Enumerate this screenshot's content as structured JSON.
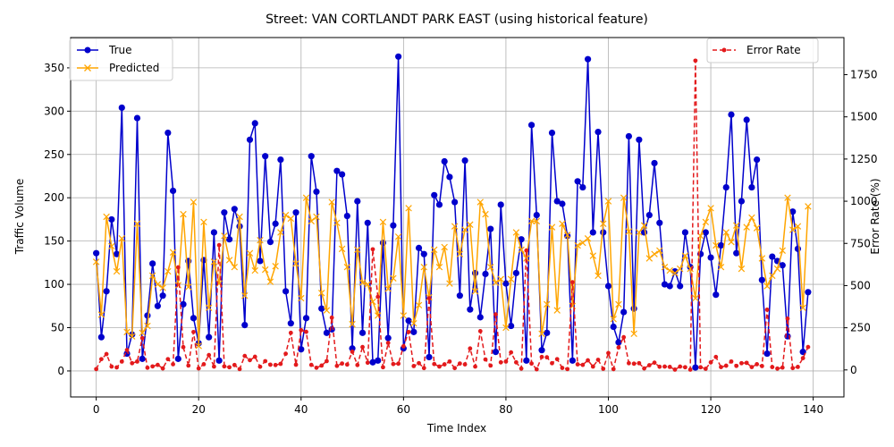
{
  "chart_data": {
    "type": "line",
    "title": "Street: VAN CORTLANDT PARK EAST (using historical feature)",
    "xlabel": "Time Index",
    "ylabel_left": "Traffic Volume",
    "ylabel_right": "Error Rate (%)",
    "xlim": [
      -5,
      146
    ],
    "ylim_left": [
      -30,
      385
    ],
    "ylim_right": [
      -160,
      1970
    ],
    "x_ticks": [
      0,
      20,
      40,
      60,
      80,
      100,
      120,
      140
    ],
    "y_ticks_left": [
      0,
      50,
      100,
      150,
      200,
      250,
      300,
      350
    ],
    "y_ticks_right": [
      0,
      250,
      500,
      750,
      1000,
      1250,
      1500,
      1750
    ],
    "grid": true,
    "legend_left": "top-left",
    "legend_right": "top-right",
    "colors": {
      "true": "#0000cc",
      "predicted": "#ffa500",
      "error": "#e31a1c"
    },
    "series": [
      {
        "name": "True",
        "axis": "left",
        "marker": "circle",
        "values": [
          136,
          39,
          92,
          175,
          135,
          304,
          20,
          42,
          292,
          14,
          64,
          124,
          75,
          87,
          275,
          208,
          14,
          77,
          127,
          61,
          32,
          128,
          39,
          160,
          12,
          183,
          152,
          187,
          167,
          53,
          267,
          286,
          127,
          248,
          149,
          170,
          244,
          92,
          55,
          183,
          25,
          61,
          248,
          207,
          72,
          44,
          48,
          231,
          227,
          179,
          26,
          196,
          44,
          171,
          10,
          12,
          148,
          38,
          168,
          363,
          26,
          58,
          45,
          142,
          135,
          16,
          203,
          192,
          242,
          224,
          195,
          87,
          243,
          71,
          113,
          62,
          112,
          164,
          22,
          192,
          101,
          52,
          113,
          152,
          12,
          284,
          180,
          24,
          44,
          275,
          196,
          193,
          156,
          12,
          219,
          212,
          360,
          160,
          276,
          160,
          98,
          51,
          33,
          68,
          271,
          72,
          267,
          160,
          180,
          240,
          171,
          100,
          98,
          115,
          98,
          160,
          120,
          4,
          135,
          160,
          131,
          88,
          145,
          212,
          296,
          136,
          196,
          290,
          212,
          244,
          105,
          20,
          132,
          127,
          122,
          40,
          184,
          141,
          22,
          91
        ]
      },
      {
        "name": "Predicted",
        "axis": "left",
        "marker": "x",
        "values": [
          126,
          65,
          178,
          144,
          115,
          153,
          45,
          40,
          170,
          44,
          52,
          110,
          100,
          96,
          115,
          137,
          99,
          181,
          97,
          195,
          29,
          172,
          73,
          126,
          101,
          156,
          128,
          120,
          178,
          87,
          136,
          116,
          151,
          117,
          103,
          121,
          160,
          180,
          176,
          124,
          84,
          200,
          173,
          178,
          90,
          70,
          195,
          171,
          141,
          120,
          54,
          140,
          102,
          100,
          80,
          64,
          172,
          95,
          107,
          155,
          64,
          188,
          55,
          76,
          120,
          85,
          140,
          120,
          143,
          101,
          167,
          135,
          163,
          169,
          92,
          195,
          181,
          120,
          102,
          106,
          50,
          106,
          160,
          140,
          130,
          173,
          173,
          43,
          77,
          166,
          70,
          170,
          157,
          75,
          145,
          148,
          153,
          133,
          110,
          170,
          196,
          60,
          77,
          200,
          161,
          43,
          160,
          168,
          130,
          135,
          139,
          120,
          116,
          113,
          118,
          133,
          118,
          84,
          156,
          172,
          188,
          145,
          120,
          160,
          149,
          168,
          118,
          166,
          177,
          165,
          130,
          98,
          110,
          118,
          139,
          200,
          163,
          167,
          73,
          190
        ]
      },
      {
        "name": "Error Rate",
        "axis": "right",
        "marker": "dot",
        "values": [
          5,
          64,
          94,
          20,
          15,
          50,
          118,
          40,
          50,
          189,
          13,
          21,
          30,
          9,
          64,
          34,
          608,
          135,
          26,
          225,
          9,
          34,
          88,
          20,
          740,
          21,
          16,
          29,
          5,
          83,
          58,
          78,
          19,
          52,
          31,
          29,
          36,
          96,
          220,
          31,
          236,
          226,
          30,
          13,
          26,
          52,
          310,
          24,
          38,
          32,
          108,
          29,
          136,
          43,
          715,
          433,
          16,
          160,
          35,
          37,
          140,
          225,
          23,
          40,
          11,
          425,
          35,
          20,
          33,
          50,
          11,
          38,
          33,
          127,
          20,
          230,
          62,
          26,
          329,
          45,
          50,
          104,
          45,
          8,
          708,
          38,
          4,
          77,
          75,
          40,
          64,
          12,
          5,
          520,
          33,
          30,
          57,
          20,
          60,
          7,
          100,
          5,
          133,
          194,
          40,
          37,
          40,
          9,
          28,
          43,
          19,
          20,
          18,
          2,
          20,
          16,
          2,
          1833,
          16,
          7,
          45,
          77,
          17,
          25,
          50,
          24,
          40,
          42,
          17,
          34,
          23,
          357,
          17,
          8,
          14,
          304,
          11,
          18,
          70,
          136
        ]
      }
    ]
  }
}
